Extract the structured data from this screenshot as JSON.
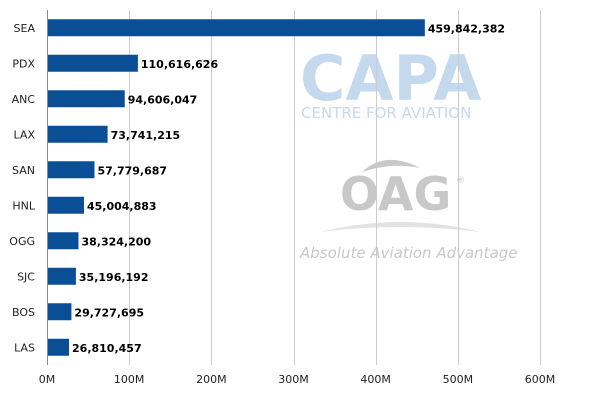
{
  "chart_data": {
    "type": "bar",
    "orientation": "horizontal",
    "categories": [
      "SEA",
      "PDX",
      "ANC",
      "LAX",
      "SAN",
      "HNL",
      "OGG",
      "SJC",
      "BOS",
      "LAS"
    ],
    "values": [
      459842382,
      110616626,
      94606047,
      73741215,
      57779687,
      45004883,
      38324200,
      35196192,
      29727695,
      26810457
    ],
    "value_labels": [
      "459,842,382",
      "110,616,626",
      "94,606,047",
      "73,741,215",
      "57,779,687",
      "45,004,883",
      "38,324,200",
      "35,196,192",
      "29,727,695",
      "26,810,457"
    ],
    "x_ticks": [
      0,
      100000000,
      200000000,
      300000000,
      400000000,
      500000000,
      600000000
    ],
    "x_tick_labels": [
      "0M",
      "100M",
      "200M",
      "300M",
      "400M",
      "500M",
      "600M"
    ],
    "xlim": [
      0,
      600000000
    ],
    "grid": "vertical",
    "title": "",
    "xlabel": "",
    "ylabel": "",
    "colors": {
      "bar": "#0a4e96",
      "grid": "#cccccc"
    }
  },
  "watermark": {
    "capa_logo": "CAPA",
    "capa_tagline": "CENTRE FOR AVIATION",
    "oag_logo": "OAG",
    "oag_mark": "®",
    "oag_tagline": "Absolute Aviation Advantage",
    "colors": {
      "capa": "#c5d9ee",
      "oag": "#c8c8c8"
    }
  }
}
